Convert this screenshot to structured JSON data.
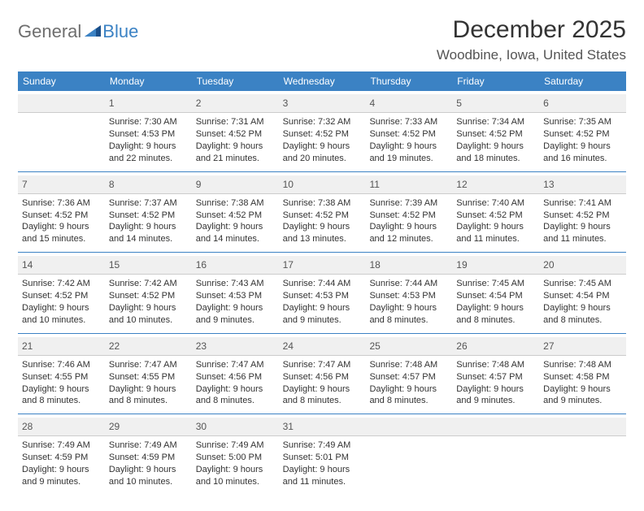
{
  "logo": {
    "general": "General",
    "blue": "Blue"
  },
  "title": "December 2025",
  "location": "Woodbine, Iowa, United States",
  "colors": {
    "header_bg": "#3b82c4",
    "daynum_bg": "#f0f0f0",
    "text": "#333333",
    "logo_gray": "#6e6e6e",
    "logo_blue": "#3b82c4"
  },
  "weekdays": [
    "Sunday",
    "Monday",
    "Tuesday",
    "Wednesday",
    "Thursday",
    "Friday",
    "Saturday"
  ],
  "weeks": [
    [
      {
        "day": "",
        "sunrise": "",
        "sunset": "",
        "daylight1": "",
        "daylight2": ""
      },
      {
        "day": "1",
        "sunrise": "Sunrise: 7:30 AM",
        "sunset": "Sunset: 4:53 PM",
        "daylight1": "Daylight: 9 hours",
        "daylight2": "and 22 minutes."
      },
      {
        "day": "2",
        "sunrise": "Sunrise: 7:31 AM",
        "sunset": "Sunset: 4:52 PM",
        "daylight1": "Daylight: 9 hours",
        "daylight2": "and 21 minutes."
      },
      {
        "day": "3",
        "sunrise": "Sunrise: 7:32 AM",
        "sunset": "Sunset: 4:52 PM",
        "daylight1": "Daylight: 9 hours",
        "daylight2": "and 20 minutes."
      },
      {
        "day": "4",
        "sunrise": "Sunrise: 7:33 AM",
        "sunset": "Sunset: 4:52 PM",
        "daylight1": "Daylight: 9 hours",
        "daylight2": "and 19 minutes."
      },
      {
        "day": "5",
        "sunrise": "Sunrise: 7:34 AM",
        "sunset": "Sunset: 4:52 PM",
        "daylight1": "Daylight: 9 hours",
        "daylight2": "and 18 minutes."
      },
      {
        "day": "6",
        "sunrise": "Sunrise: 7:35 AM",
        "sunset": "Sunset: 4:52 PM",
        "daylight1": "Daylight: 9 hours",
        "daylight2": "and 16 minutes."
      }
    ],
    [
      {
        "day": "7",
        "sunrise": "Sunrise: 7:36 AM",
        "sunset": "Sunset: 4:52 PM",
        "daylight1": "Daylight: 9 hours",
        "daylight2": "and 15 minutes."
      },
      {
        "day": "8",
        "sunrise": "Sunrise: 7:37 AM",
        "sunset": "Sunset: 4:52 PM",
        "daylight1": "Daylight: 9 hours",
        "daylight2": "and 14 minutes."
      },
      {
        "day": "9",
        "sunrise": "Sunrise: 7:38 AM",
        "sunset": "Sunset: 4:52 PM",
        "daylight1": "Daylight: 9 hours",
        "daylight2": "and 14 minutes."
      },
      {
        "day": "10",
        "sunrise": "Sunrise: 7:38 AM",
        "sunset": "Sunset: 4:52 PM",
        "daylight1": "Daylight: 9 hours",
        "daylight2": "and 13 minutes."
      },
      {
        "day": "11",
        "sunrise": "Sunrise: 7:39 AM",
        "sunset": "Sunset: 4:52 PM",
        "daylight1": "Daylight: 9 hours",
        "daylight2": "and 12 minutes."
      },
      {
        "day": "12",
        "sunrise": "Sunrise: 7:40 AM",
        "sunset": "Sunset: 4:52 PM",
        "daylight1": "Daylight: 9 hours",
        "daylight2": "and 11 minutes."
      },
      {
        "day": "13",
        "sunrise": "Sunrise: 7:41 AM",
        "sunset": "Sunset: 4:52 PM",
        "daylight1": "Daylight: 9 hours",
        "daylight2": "and 11 minutes."
      }
    ],
    [
      {
        "day": "14",
        "sunrise": "Sunrise: 7:42 AM",
        "sunset": "Sunset: 4:52 PM",
        "daylight1": "Daylight: 9 hours",
        "daylight2": "and 10 minutes."
      },
      {
        "day": "15",
        "sunrise": "Sunrise: 7:42 AM",
        "sunset": "Sunset: 4:52 PM",
        "daylight1": "Daylight: 9 hours",
        "daylight2": "and 10 minutes."
      },
      {
        "day": "16",
        "sunrise": "Sunrise: 7:43 AM",
        "sunset": "Sunset: 4:53 PM",
        "daylight1": "Daylight: 9 hours",
        "daylight2": "and 9 minutes."
      },
      {
        "day": "17",
        "sunrise": "Sunrise: 7:44 AM",
        "sunset": "Sunset: 4:53 PM",
        "daylight1": "Daylight: 9 hours",
        "daylight2": "and 9 minutes."
      },
      {
        "day": "18",
        "sunrise": "Sunrise: 7:44 AM",
        "sunset": "Sunset: 4:53 PM",
        "daylight1": "Daylight: 9 hours",
        "daylight2": "and 8 minutes."
      },
      {
        "day": "19",
        "sunrise": "Sunrise: 7:45 AM",
        "sunset": "Sunset: 4:54 PM",
        "daylight1": "Daylight: 9 hours",
        "daylight2": "and 8 minutes."
      },
      {
        "day": "20",
        "sunrise": "Sunrise: 7:45 AM",
        "sunset": "Sunset: 4:54 PM",
        "daylight1": "Daylight: 9 hours",
        "daylight2": "and 8 minutes."
      }
    ],
    [
      {
        "day": "21",
        "sunrise": "Sunrise: 7:46 AM",
        "sunset": "Sunset: 4:55 PM",
        "daylight1": "Daylight: 9 hours",
        "daylight2": "and 8 minutes."
      },
      {
        "day": "22",
        "sunrise": "Sunrise: 7:47 AM",
        "sunset": "Sunset: 4:55 PM",
        "daylight1": "Daylight: 9 hours",
        "daylight2": "and 8 minutes."
      },
      {
        "day": "23",
        "sunrise": "Sunrise: 7:47 AM",
        "sunset": "Sunset: 4:56 PM",
        "daylight1": "Daylight: 9 hours",
        "daylight2": "and 8 minutes."
      },
      {
        "day": "24",
        "sunrise": "Sunrise: 7:47 AM",
        "sunset": "Sunset: 4:56 PM",
        "daylight1": "Daylight: 9 hours",
        "daylight2": "and 8 minutes."
      },
      {
        "day": "25",
        "sunrise": "Sunrise: 7:48 AM",
        "sunset": "Sunset: 4:57 PM",
        "daylight1": "Daylight: 9 hours",
        "daylight2": "and 8 minutes."
      },
      {
        "day": "26",
        "sunrise": "Sunrise: 7:48 AM",
        "sunset": "Sunset: 4:57 PM",
        "daylight1": "Daylight: 9 hours",
        "daylight2": "and 9 minutes."
      },
      {
        "day": "27",
        "sunrise": "Sunrise: 7:48 AM",
        "sunset": "Sunset: 4:58 PM",
        "daylight1": "Daylight: 9 hours",
        "daylight2": "and 9 minutes."
      }
    ],
    [
      {
        "day": "28",
        "sunrise": "Sunrise: 7:49 AM",
        "sunset": "Sunset: 4:59 PM",
        "daylight1": "Daylight: 9 hours",
        "daylight2": "and 9 minutes."
      },
      {
        "day": "29",
        "sunrise": "Sunrise: 7:49 AM",
        "sunset": "Sunset: 4:59 PM",
        "daylight1": "Daylight: 9 hours",
        "daylight2": "and 10 minutes."
      },
      {
        "day": "30",
        "sunrise": "Sunrise: 7:49 AM",
        "sunset": "Sunset: 5:00 PM",
        "daylight1": "Daylight: 9 hours",
        "daylight2": "and 10 minutes."
      },
      {
        "day": "31",
        "sunrise": "Sunrise: 7:49 AM",
        "sunset": "Sunset: 5:01 PM",
        "daylight1": "Daylight: 9 hours",
        "daylight2": "and 11 minutes."
      },
      {
        "day": "",
        "sunrise": "",
        "sunset": "",
        "daylight1": "",
        "daylight2": ""
      },
      {
        "day": "",
        "sunrise": "",
        "sunset": "",
        "daylight1": "",
        "daylight2": ""
      },
      {
        "day": "",
        "sunrise": "",
        "sunset": "",
        "daylight1": "",
        "daylight2": ""
      }
    ]
  ]
}
